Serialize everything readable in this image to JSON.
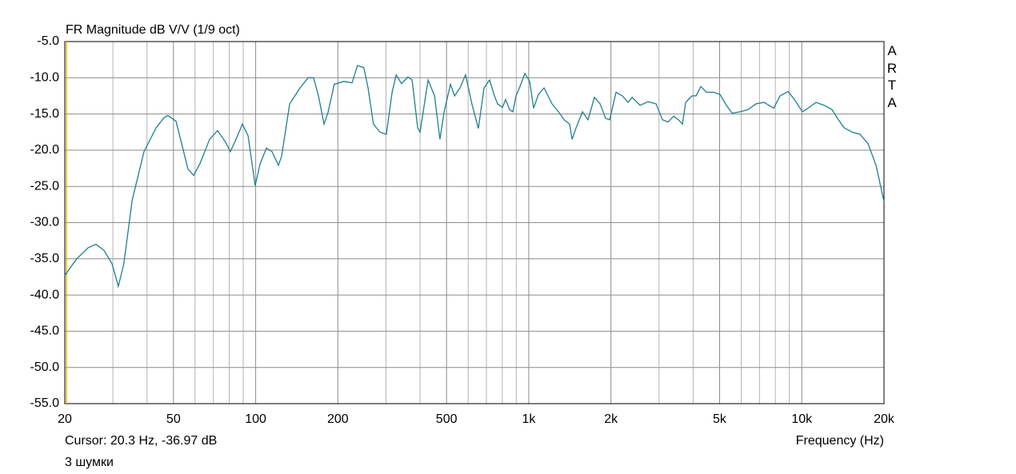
{
  "chart_data": {
    "type": "line",
    "title": "FR Magnitude dB V/V (1/9 oct)",
    "xlabel": "Frequency (Hz)",
    "cursor_text": "Cursor: 20.3 Hz, -36.97 dB",
    "note": "3 шумки",
    "brand": "ARTA",
    "xscale": "log",
    "xlim": [
      20,
      20000
    ],
    "ylim": [
      -55,
      -5
    ],
    "xticks": [
      20,
      50,
      100,
      200,
      500,
      {
        "value": 1000,
        "label": "1k"
      },
      {
        "value": 2000,
        "label": "2k"
      },
      {
        "value": 5000,
        "label": "5k"
      },
      {
        "value": 10000,
        "label": "10k"
      },
      {
        "value": 20000,
        "label": "20k"
      }
    ],
    "xminor": [
      30,
      40,
      60,
      70,
      80,
      90,
      300,
      400,
      600,
      700,
      800,
      900,
      3000,
      4000,
      6000,
      7000,
      8000,
      9000
    ],
    "yticks": [
      {
        "value": -5,
        "label": "-5.0"
      },
      {
        "value": -10,
        "label": "-10.0"
      },
      {
        "value": -15,
        "label": "-15.0"
      },
      {
        "value": -20,
        "label": "-20.0"
      },
      {
        "value": -25,
        "label": "-25.0"
      },
      {
        "value": -30,
        "label": "-30.0"
      },
      {
        "value": -35,
        "label": "-35.0"
      },
      {
        "value": -40,
        "label": "-40.0"
      },
      {
        "value": -45,
        "label": "-45.0"
      },
      {
        "value": -50,
        "label": "-50.0"
      },
      {
        "value": -55,
        "label": "-55.0"
      }
    ],
    "grid": true,
    "cursor": {
      "x": 20.3,
      "color": "#e6c200"
    },
    "x": [
      20,
      22.0,
      24.3,
      26.0,
      27.8,
      29.8,
      31.4,
      32.9,
      35.3,
      39.0,
      43.2,
      46.2,
      47.7,
      51.1,
      56.5,
      59.3,
      62.6,
      67.8,
      72.5,
      77.6,
      80.8,
      84.7,
      89.4,
      93.8,
      99.6,
      103.8,
      109.5,
      114.8,
      121.2,
      124.5,
      133.2,
      145.4,
      155.5,
      163,
      169.8,
      178,
      184,
      194,
      210.6,
      225.4,
      236,
      249,
      258,
      270,
      285,
      301,
      316,
      327,
      342,
      361,
      374,
      392,
      400,
      428,
      452,
      473,
      490,
      517,
      535,
      560,
      587,
      620,
      654,
      686,
      719,
      749,
      769,
      801,
      823,
      851,
      875,
      898,
      929,
      968,
      1008,
      1042,
      1085,
      1138,
      1217,
      1285,
      1347,
      1412,
      1441,
      1491,
      1573,
      1649,
      1740,
      1825,
      1913,
      1979,
      2088,
      2204,
      2311,
      2390,
      2558,
      2736,
      2926,
      3090,
      3238,
      3394,
      3534,
      3656,
      3756,
      3964,
      4100,
      4270,
      4476,
      4756,
      5018,
      5298,
      5554,
      5944,
      6356,
      6800,
      7276,
      7890,
      8328,
      8906,
      9398,
      10054,
      10544,
      11278,
      12066,
      12904,
      13620,
      14280,
      15276,
      16340,
      17482,
      18706,
      20000
    ],
    "series": [
      {
        "color": "#1f7f8f",
        "values": [
          -37.3,
          -35.1,
          -33.5,
          -33.0,
          -33.8,
          -35.7,
          -38.8,
          -35.7,
          -26.9,
          -20.2,
          -16.9,
          -15.5,
          -15.2,
          -16.0,
          -22.6,
          -23.5,
          -21.8,
          -18.5,
          -17.3,
          -18.9,
          -20.2,
          -18.5,
          -16.4,
          -18.0,
          -24.9,
          -21.9,
          -19.7,
          -20.2,
          -22.1,
          -20.8,
          -13.6,
          -11.4,
          -10.0,
          -10.0,
          -12.5,
          -16.4,
          -14.8,
          -10.9,
          -10.5,
          -10.7,
          -8.3,
          -8.6,
          -11.4,
          -16.4,
          -17.5,
          -17.8,
          -12.0,
          -9.6,
          -10.8,
          -9.9,
          -10.3,
          -16.9,
          -17.5,
          -10.3,
          -12.5,
          -18.5,
          -14.7,
          -10.9,
          -12.5,
          -11.4,
          -9.6,
          -13.7,
          -17.0,
          -11.4,
          -10.3,
          -12.5,
          -13.6,
          -14.1,
          -13.0,
          -14.4,
          -14.7,
          -12.5,
          -11.2,
          -9.4,
          -10.5,
          -14.2,
          -12.3,
          -11.4,
          -13.6,
          -14.7,
          -15.8,
          -16.4,
          -18.5,
          -16.9,
          -14.7,
          -15.8,
          -12.7,
          -13.6,
          -15.6,
          -15.8,
          -12.0,
          -12.5,
          -13.4,
          -12.7,
          -13.8,
          -13.3,
          -13.6,
          -15.8,
          -16.1,
          -15.3,
          -15.8,
          -16.4,
          -13.4,
          -12.5,
          -12.5,
          -11.2,
          -12.0,
          -12.0,
          -12.3,
          -13.8,
          -14.9,
          -14.7,
          -14.4,
          -13.6,
          -13.4,
          -14.2,
          -12.5,
          -11.9,
          -13.0,
          -14.7,
          -14.2,
          -13.4,
          -13.8,
          -14.4,
          -15.8,
          -16.9,
          -17.5,
          -17.8,
          -19.1,
          -22.1,
          -27.1
        ]
      }
    ]
  }
}
